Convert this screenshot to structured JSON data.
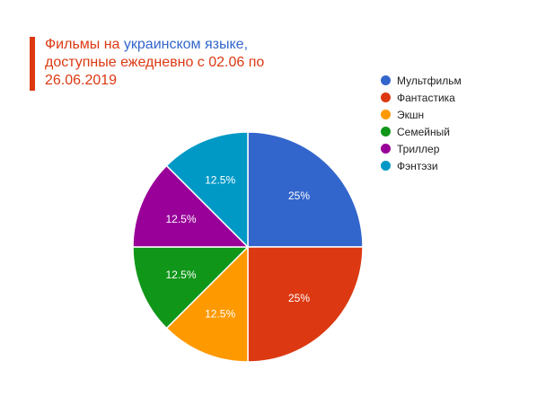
{
  "title": {
    "part1": "Фильмы на ",
    "part2": "украинском языке,",
    "part3": "доступные ежедневно с 02.06 по 26.06.2019"
  },
  "chart_data": {
    "type": "pie",
    "title": "Фильмы на украинском языке, доступные ежедневно с 02.06 по 26.06.2019",
    "categories": [
      "Мультфильм",
      "Фантастика",
      "Экшн",
      "Семейный",
      "Триллер",
      "Фэнтэзи"
    ],
    "values": [
      25,
      25,
      12.5,
      12.5,
      12.5,
      12.5
    ],
    "labels": [
      "25%",
      "25%",
      "12.5%",
      "12.5%",
      "12.5%",
      "12.5%"
    ],
    "colors": [
      "#3366cc",
      "#dc3912",
      "#ff9900",
      "#109618",
      "#990099",
      "#0099c6"
    ],
    "legend": "right"
  }
}
